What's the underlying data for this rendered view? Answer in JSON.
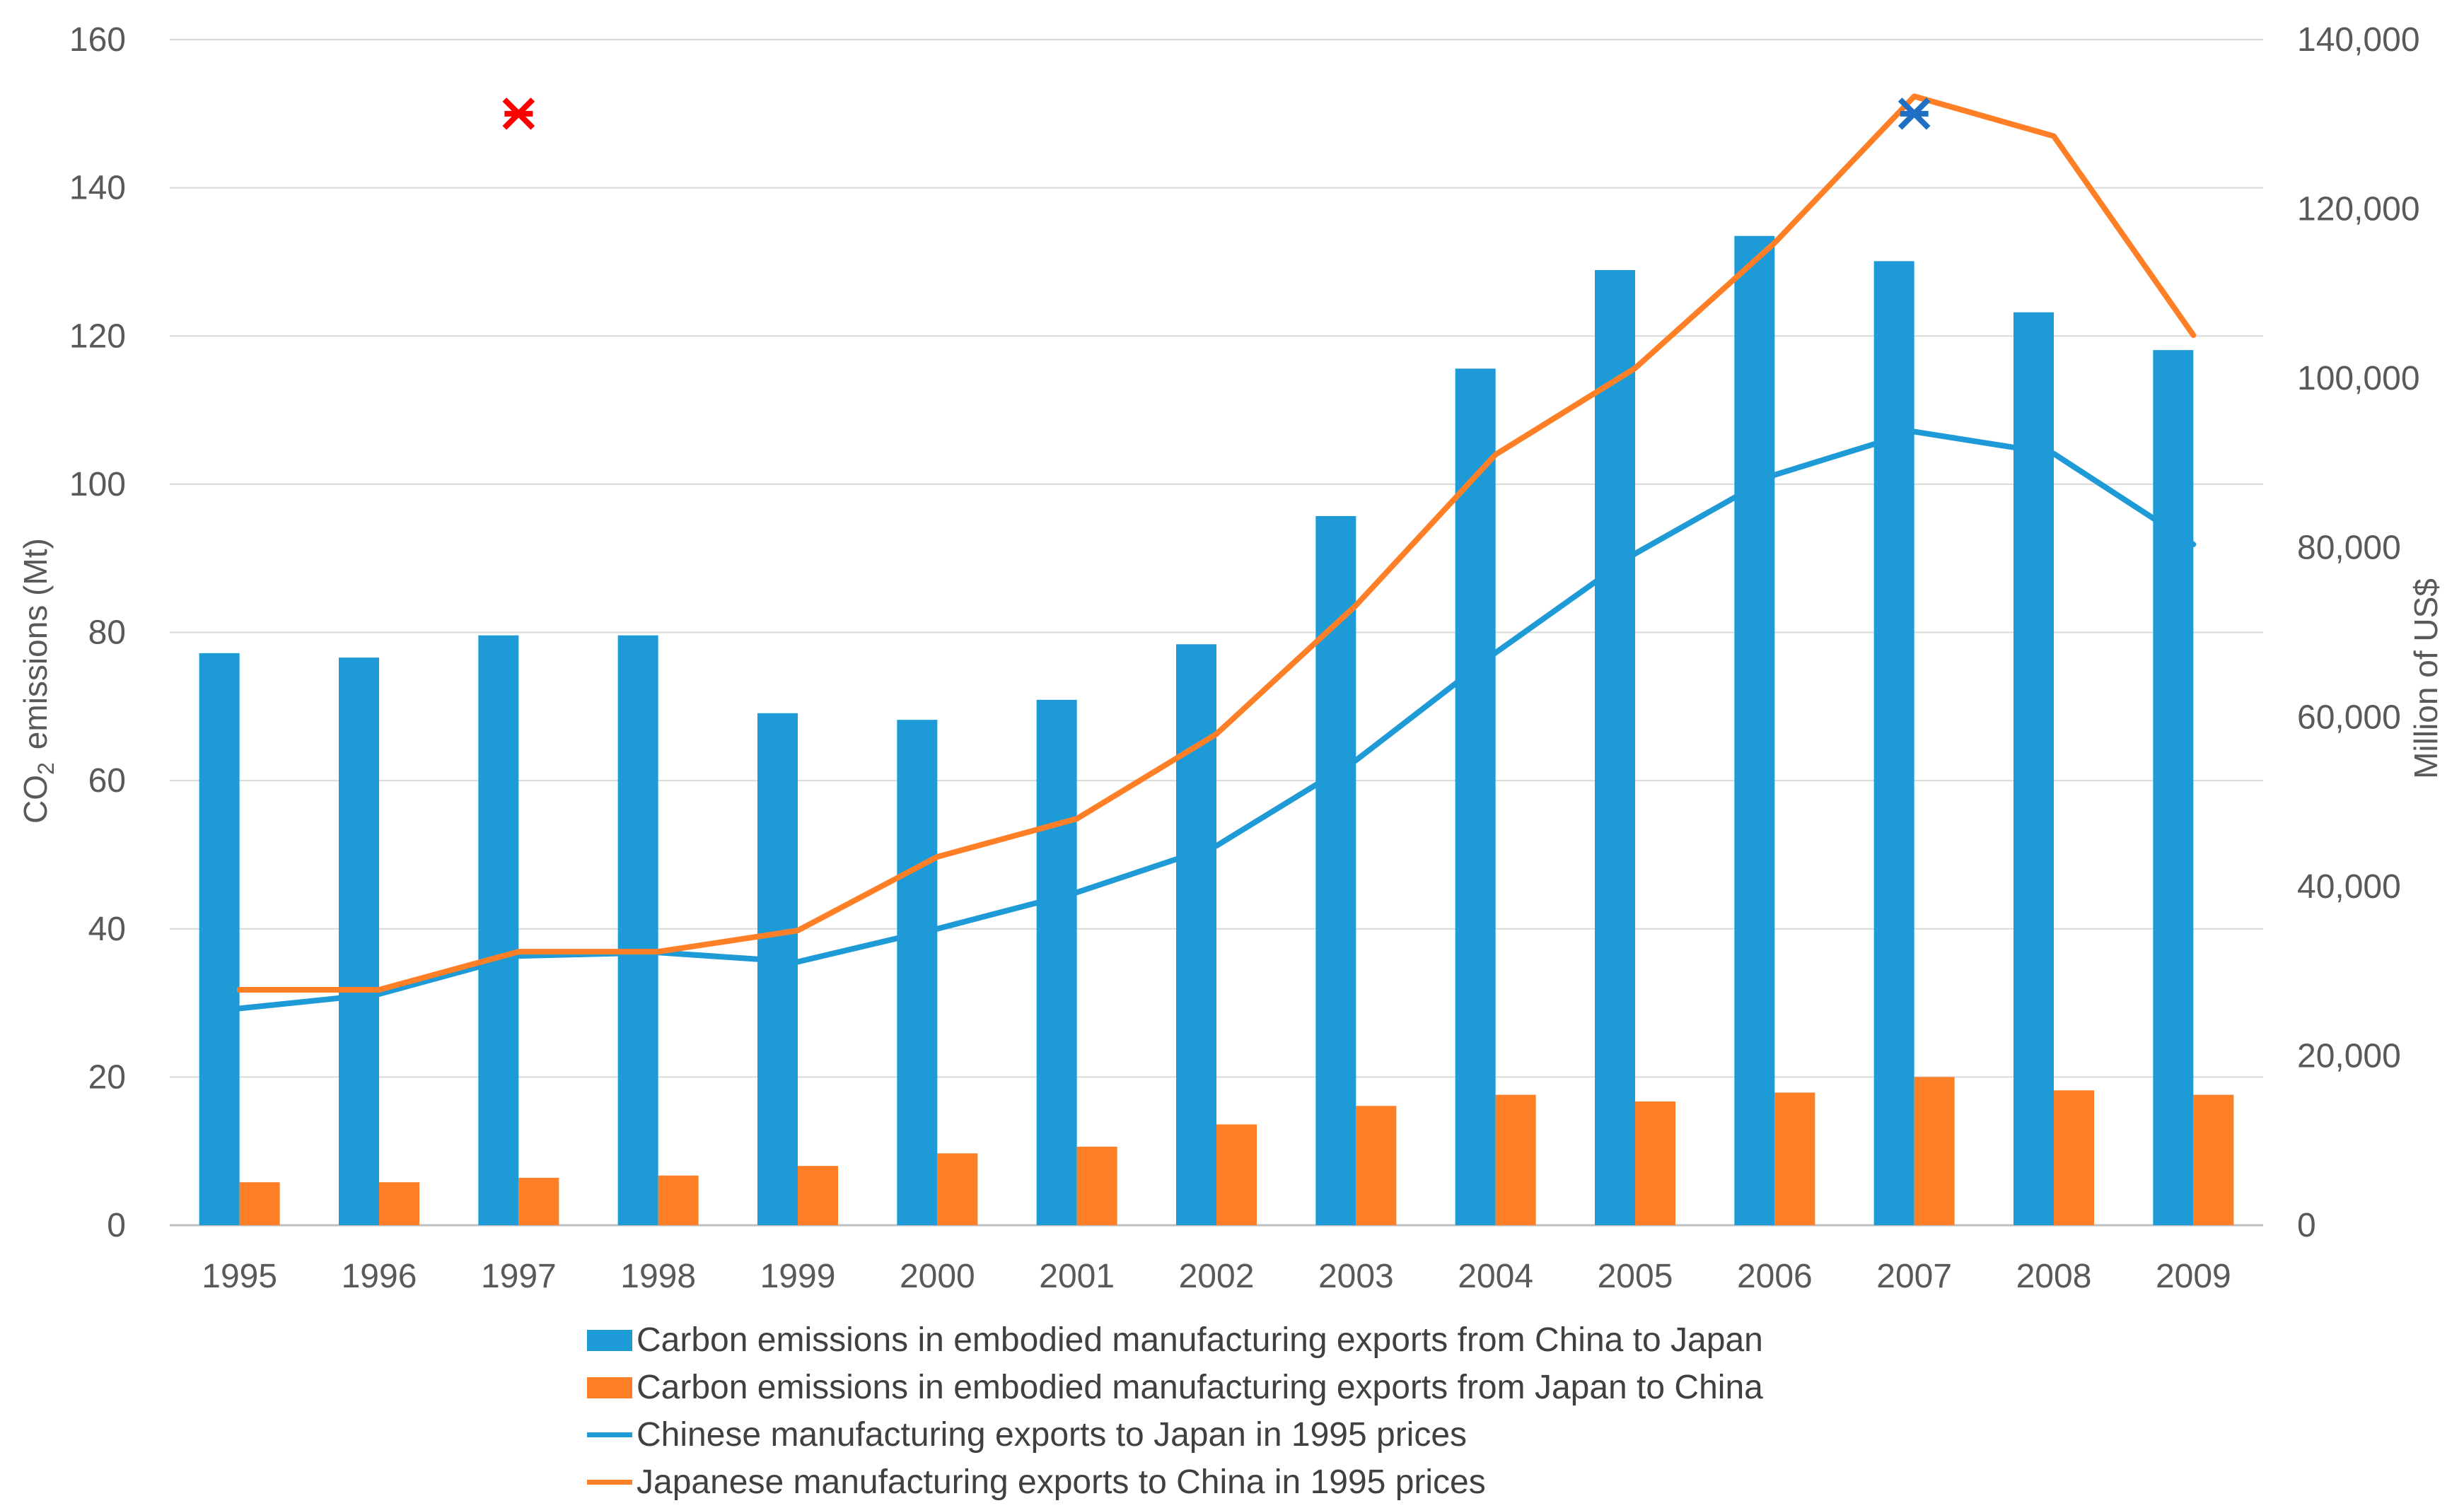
{
  "chart_data": {
    "type": "bar+line",
    "categories": [
      "1995",
      "1996",
      "1997",
      "1998",
      "1999",
      "2000",
      "2001",
      "2002",
      "2003",
      "2004",
      "2005",
      "2006",
      "2007",
      "2008",
      "2009"
    ],
    "series": [
      {
        "name": "Carbon emissions in embodied manufacturing exports from China to Japan",
        "kind": "bar",
        "axis": "left",
        "color": "#1E9BD7",
        "values": [
          77.2,
          76.6,
          79.6,
          79.6,
          69.1,
          68.2,
          70.9,
          78.4,
          95.7,
          115.6,
          128.9,
          133.5,
          130.1,
          123.2,
          118.1
        ]
      },
      {
        "name": "Carbon emissions in embodied manufacturing exports from Japan to China",
        "kind": "bar",
        "axis": "left",
        "color": "#FF7F27",
        "values": [
          5.8,
          5.8,
          6.4,
          6.7,
          8.0,
          9.7,
          10.6,
          13.6,
          16.1,
          17.6,
          16.7,
          17.9,
          20.0,
          18.2,
          17.6
        ]
      },
      {
        "name": "Chinese manufacturing exports to Japan in 1995 prices",
        "kind": "line",
        "axis": "right",
        "color": "#1E9BD7",
        "values": [
          25600,
          27300,
          31800,
          32200,
          31100,
          35000,
          39300,
          44800,
          54900,
          67600,
          79300,
          88600,
          93700,
          91100,
          80400
        ]
      },
      {
        "name": "Japanese manufacturing exports to China in 1995 prices",
        "kind": "line",
        "axis": "right",
        "color": "#FF7F27",
        "values": [
          27800,
          27800,
          32300,
          32300,
          34800,
          43500,
          48000,
          58000,
          73200,
          91000,
          101200,
          116000,
          133300,
          128600,
          105100
        ]
      }
    ],
    "ylabel_left": "emissions (Mt)",
    "ylabel_left_prefix": "CO",
    "ylabel_left_subscript": "2",
    "ylabel_right": "Million of US$",
    "ylim_left": [
      0,
      160
    ],
    "ylim_right": [
      0,
      140000
    ],
    "yticks_left": [
      "0",
      "20",
      "40",
      "60",
      "80",
      "100",
      "120",
      "140",
      "160"
    ],
    "yticks_right": [
      "0",
      "20,000",
      "40,000",
      "60,000",
      "80,000",
      "100,000",
      "120,000",
      "140,000"
    ],
    "markers": [
      {
        "category": "1997",
        "value": 150,
        "axis": "left",
        "color": "#FF0000",
        "symbol": "star-x"
      },
      {
        "category": "2007",
        "value": 150,
        "axis": "left",
        "color": "#1F6FC5",
        "symbol": "star-x"
      }
    ],
    "grid": true,
    "legend_position": "bottom"
  }
}
